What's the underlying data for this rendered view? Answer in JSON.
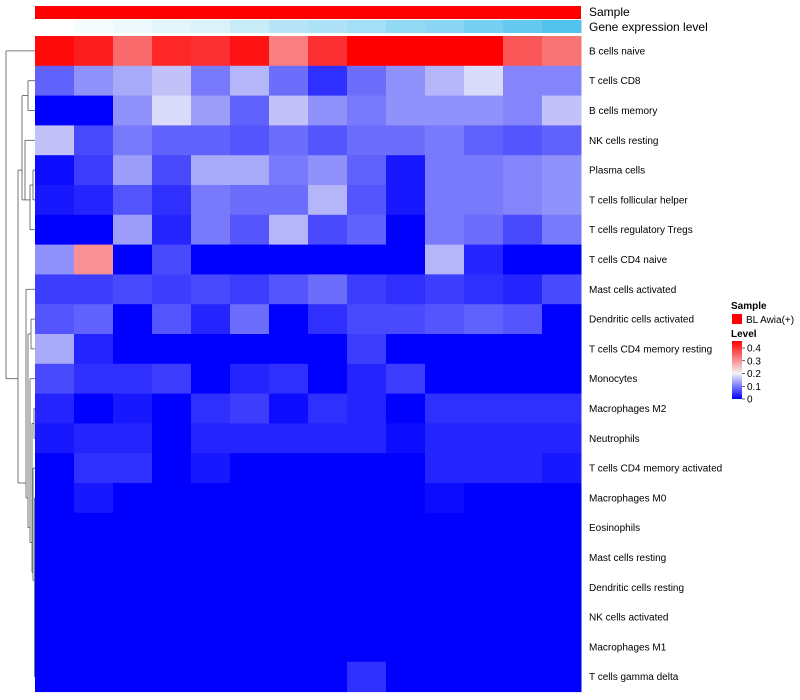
{
  "chart_data": {
    "type": "heatmap",
    "annotation_rows": {
      "sample_label": "Sample",
      "expression_label": "Gene expression level",
      "sample_color": "#ff0000",
      "expression_values": [
        0.0,
        0.05,
        0.1,
        0.15,
        0.2,
        0.3,
        0.4,
        0.45,
        0.5,
        0.6,
        0.65,
        0.75,
        0.85,
        0.95
      ]
    },
    "rows": [
      "B cells naive",
      "T cells CD8",
      "B cells memory",
      "NK cells resting",
      "Plasma cells",
      "T cells follicular helper",
      "T cells regulatory  Tregs",
      "T cells CD4 naive",
      "Mast cells activated",
      "Dendritic cells activated",
      "T cells CD4 memory resting",
      "Monocytes",
      "Macrophages M2",
      "Neutrophils",
      "T cells CD4 memory activated",
      "Macrophages M0",
      "Eosinophils",
      "Mast cells resting",
      "Dendritic cells resting",
      "NK cells activated",
      "Macrophages M1",
      "T cells gamma delta"
    ],
    "values": [
      [
        0.44,
        0.42,
        0.34,
        0.41,
        0.4,
        0.43,
        0.32,
        0.4,
        0.45,
        0.45,
        0.45,
        0.45,
        0.36,
        0.33
      ],
      [
        0.08,
        0.12,
        0.14,
        0.16,
        0.1,
        0.15,
        0.09,
        0.04,
        0.09,
        0.12,
        0.15,
        0.18,
        0.11,
        0.11
      ],
      [
        0.0,
        0.0,
        0.12,
        0.18,
        0.13,
        0.08,
        0.16,
        0.12,
        0.1,
        0.12,
        0.12,
        0.12,
        0.11,
        0.16
      ],
      [
        0.16,
        0.06,
        0.1,
        0.08,
        0.08,
        0.07,
        0.09,
        0.07,
        0.09,
        0.09,
        0.1,
        0.08,
        0.07,
        0.08
      ],
      [
        0.01,
        0.05,
        0.13,
        0.06,
        0.14,
        0.14,
        0.1,
        0.12,
        0.08,
        0.02,
        0.1,
        0.1,
        0.11,
        0.12
      ],
      [
        0.02,
        0.03,
        0.07,
        0.04,
        0.1,
        0.09,
        0.09,
        0.15,
        0.07,
        0.02,
        0.1,
        0.1,
        0.11,
        0.12
      ],
      [
        0.0,
        0.0,
        0.13,
        0.03,
        0.1,
        0.07,
        0.15,
        0.06,
        0.08,
        0.0,
        0.1,
        0.09,
        0.06,
        0.1
      ],
      [
        0.12,
        0.3,
        0.0,
        0.06,
        0.0,
        0.0,
        0.0,
        0.0,
        0.0,
        0.0,
        0.15,
        0.03,
        0.0,
        0.0
      ],
      [
        0.05,
        0.05,
        0.06,
        0.05,
        0.06,
        0.05,
        0.07,
        0.09,
        0.05,
        0.04,
        0.05,
        0.04,
        0.03,
        0.06
      ],
      [
        0.07,
        0.08,
        0.0,
        0.07,
        0.03,
        0.09,
        0.0,
        0.04,
        0.06,
        0.06,
        0.07,
        0.08,
        0.07,
        0.0
      ],
      [
        0.14,
        0.03,
        0.0,
        0.0,
        0.0,
        0.0,
        0.0,
        0.0,
        0.05,
        0.0,
        0.0,
        0.0,
        0.0,
        0.0
      ],
      [
        0.06,
        0.04,
        0.04,
        0.05,
        0.0,
        0.03,
        0.04,
        0.0,
        0.03,
        0.05,
        0.0,
        0.0,
        0.0,
        0.0
      ],
      [
        0.03,
        0.0,
        0.02,
        0.0,
        0.04,
        0.05,
        0.01,
        0.04,
        0.03,
        0.0,
        0.04,
        0.04,
        0.04,
        0.04
      ],
      [
        0.02,
        0.03,
        0.03,
        0.0,
        0.03,
        0.03,
        0.03,
        0.03,
        0.03,
        0.01,
        0.03,
        0.03,
        0.03,
        0.03
      ],
      [
        0.0,
        0.04,
        0.04,
        0.0,
        0.02,
        0.0,
        0.0,
        0.0,
        0.0,
        0.0,
        0.03,
        0.03,
        0.03,
        0.02
      ],
      [
        0.0,
        0.02,
        0.0,
        0.0,
        0.0,
        0.0,
        0.0,
        0.0,
        0.0,
        0.0,
        0.01,
        0.0,
        0.0,
        0.0
      ],
      [
        0.0,
        0.0,
        0.0,
        0.0,
        0.0,
        0.0,
        0.0,
        0.0,
        0.0,
        0.0,
        0.0,
        0.0,
        0.0,
        0.0
      ],
      [
        0.0,
        0.0,
        0.0,
        0.0,
        0.0,
        0.0,
        0.0,
        0.0,
        0.0,
        0.0,
        0.0,
        0.0,
        0.0,
        0.0
      ],
      [
        0.0,
        0.0,
        0.0,
        0.0,
        0.0,
        0.0,
        0.0,
        0.0,
        0.0,
        0.0,
        0.0,
        0.0,
        0.0,
        0.0
      ],
      [
        0.0,
        0.0,
        0.0,
        0.0,
        0.0,
        0.0,
        0.0,
        0.0,
        0.0,
        0.0,
        0.0,
        0.0,
        0.0,
        0.0
      ],
      [
        0.0,
        0.0,
        0.0,
        0.0,
        0.0,
        0.0,
        0.0,
        0.0,
        0.0,
        0.0,
        0.0,
        0.0,
        0.0,
        0.0
      ],
      [
        0.0,
        0.0,
        0.0,
        0.0,
        0.0,
        0.0,
        0.0,
        0.0,
        0.04,
        0.0,
        0.0,
        0.0,
        0.0,
        0.0
      ]
    ],
    "color_scale": {
      "min": 0,
      "mid": 0.2,
      "max": 0.45,
      "low_color": "#0000ff",
      "mid_color": "#f2f2f8",
      "high_color": "#ff0000"
    },
    "legend": {
      "position": "right",
      "sample_title": "Sample",
      "sample_entry": "BL Awia(+)",
      "level_title": "Level",
      "ticks": [
        "0.4",
        "0.3",
        "0.2",
        "0.1",
        "0"
      ],
      "tick_values": [
        0.4,
        0.3,
        0.2,
        0.1,
        0
      ]
    }
  }
}
